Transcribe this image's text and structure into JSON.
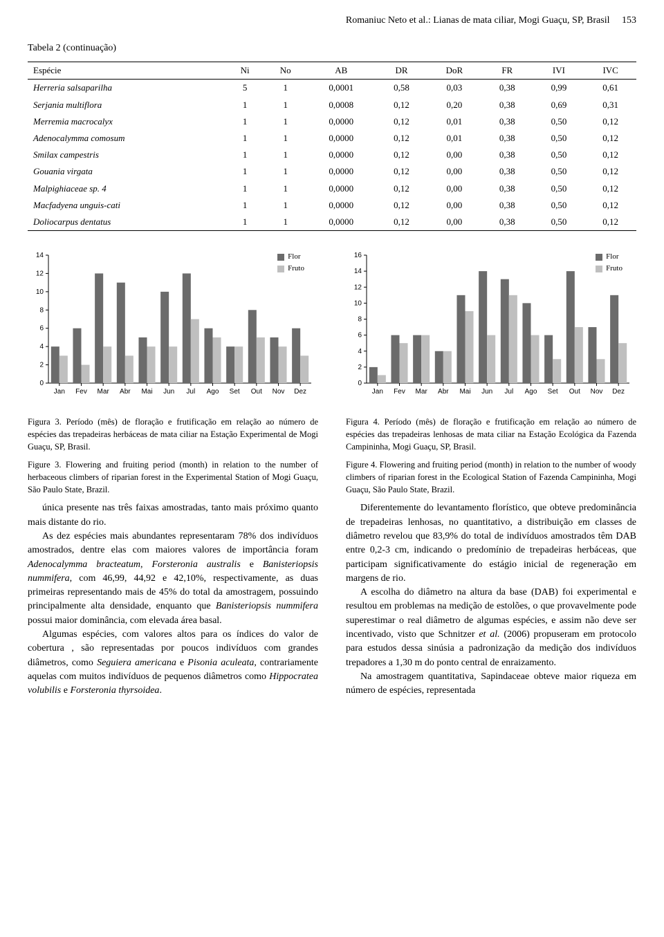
{
  "header": {
    "running_head": "Romaniuc Neto et al.: Lianas de mata ciliar, Mogi Guaçu, SP, Brasil",
    "page_number": "153"
  },
  "table": {
    "caption": "Tabela 2 (continuação)",
    "columns": [
      "Espécie",
      "Ni",
      "No",
      "AB",
      "DR",
      "DoR",
      "FR",
      "IVI",
      "IVC"
    ],
    "rows": [
      [
        "Herreria salsaparilha",
        "5",
        "1",
        "0,0001",
        "0,58",
        "0,03",
        "0,38",
        "0,99",
        "0,61"
      ],
      [
        "Serjania multiflora",
        "1",
        "1",
        "0,0008",
        "0,12",
        "0,20",
        "0,38",
        "0,69",
        "0,31"
      ],
      [
        "Merremia macrocalyx",
        "1",
        "1",
        "0,0000",
        "0,12",
        "0,01",
        "0,38",
        "0,50",
        "0,12"
      ],
      [
        "Adenocalymma comosum",
        "1",
        "1",
        "0,0000",
        "0,12",
        "0,01",
        "0,38",
        "0,50",
        "0,12"
      ],
      [
        "Smilax campestris",
        "1",
        "1",
        "0,0000",
        "0,12",
        "0,00",
        "0,38",
        "0,50",
        "0,12"
      ],
      [
        "Gouania virgata",
        "1",
        "1",
        "0,0000",
        "0,12",
        "0,00",
        "0,38",
        "0,50",
        "0,12"
      ],
      [
        "Malpighiaceae sp. 4",
        "1",
        "1",
        "0,0000",
        "0,12",
        "0,00",
        "0,38",
        "0,50",
        "0,12"
      ],
      [
        "Macfadyena unguis-cati",
        "1",
        "1",
        "0,0000",
        "0,12",
        "0,00",
        "0,38",
        "0,50",
        "0,12"
      ],
      [
        "Doliocarpus dentatus",
        "1",
        "1",
        "0,0000",
        "0,12",
        "0,00",
        "0,38",
        "0,50",
        "0,12"
      ]
    ]
  },
  "chart3": {
    "type": "bar",
    "categories": [
      "Jan",
      "Fev",
      "Mar",
      "Abr",
      "Mai",
      "Jun",
      "Jul",
      "Ago",
      "Set",
      "Out",
      "Nov",
      "Dez"
    ],
    "series": [
      {
        "name": "Flor",
        "color": "#6b6b6b",
        "values": [
          4,
          6,
          12,
          11,
          5,
          10,
          12,
          6,
          4,
          8,
          5,
          6
        ]
      },
      {
        "name": "Fruto",
        "color": "#bfbfbf",
        "values": [
          3,
          2,
          4,
          3,
          4,
          4,
          7,
          5,
          4,
          5,
          4,
          3
        ]
      }
    ],
    "ylim": [
      0,
      14
    ],
    "ytick_step": 2,
    "bar_width": 0.38,
    "background_color": "#ffffff",
    "axis_color": "#000000",
    "tick_font_size": 10
  },
  "chart4": {
    "type": "bar",
    "categories": [
      "Jan",
      "Fev",
      "Mar",
      "Abr",
      "Mai",
      "Jun",
      "Jul",
      "Ago",
      "Set",
      "Out",
      "Nov",
      "Dez"
    ],
    "series": [
      {
        "name": "Flor",
        "color": "#6b6b6b",
        "values": [
          2,
          6,
          6,
          4,
          11,
          14,
          13,
          10,
          6,
          14,
          7,
          11
        ]
      },
      {
        "name": "Fruto",
        "color": "#bfbfbf",
        "values": [
          1,
          5,
          6,
          4,
          9,
          6,
          11,
          6,
          3,
          7,
          3,
          5
        ]
      }
    ],
    "ylim": [
      0,
      16
    ],
    "ytick_step": 2,
    "bar_width": 0.38,
    "background_color": "#ffffff",
    "axis_color": "#000000",
    "tick_font_size": 10
  },
  "legend_labels": {
    "flor": "Flor",
    "fruto": "Fruto"
  },
  "captions": {
    "fig3_pt": "Figura 3. Período (mês) de floração e frutificação em relação ao número de espécies das trepadeiras herbáceas de mata ciliar na Estação Experimental de Mogi Guaçu, SP, Brasil.",
    "fig3_en": "Figure 3. Flowering and fruiting period (month) in relation to the number of herbaceous climbers of riparian forest in the Experimental Station of Mogi Guaçu, São Paulo State, Brazil.",
    "fig4_pt": "Figura 4. Período (mês) de floração e frutificação em relação ao número de espécies das trepadeiras lenhosas de mata ciliar na Estação Ecológica da Fazenda Campininha, Mogi Guaçu, SP, Brasil.",
    "fig4_en": "Figure 4. Flowering and fruiting period (month) in relation to the number of woody climbers of riparian forest in the Ecological Station of Fazenda Campininha, Mogi Guaçu, São Paulo State, Brazil."
  },
  "body": {
    "left": [
      "única presente nas três faixas amostradas, tanto mais próximo quanto mais distante do rio.",
      "As dez espécies mais abundantes representaram 78% dos indivíduos amostrados, dentre elas com maiores valores de importância foram <i>Adenocalymma bracteatum</i>, <i>Forsteronia australis</i> e <i>Banisteriopsis nummifera</i>, com 46,99, 44,92 e 42,10%, respectivamente, as duas primeiras representando mais de 45% do total da amostragem, possuindo principalmente alta densidade, enquanto que <i>Banisteriopsis nummifera</i> possui maior dominância, com elevada área basal.",
      "Algumas espécies, com valores altos para os índices do valor de cobertura , são representadas por poucos indivíduos com grandes diâmetros, como <i>Seguiera americana</i> e <i>Pisonia aculeata</i>, contrariamente aquelas com muitos indivíduos de pequenos diâmetros como <i>Hippocratea volubilis</i> e <i>Forsteronia thyrsoidea</i>."
    ],
    "right": [
      "Diferentemente do levantamento florístico, que obteve predominância de trepadeiras lenhosas, no quantitativo, a distribuição em classes de diâmetro revelou que 83,9% do total de indivíduos amostrados têm DAB entre 0,2-3 cm, indicando o predomínio de trepadeiras herbáceas, que participam significativamente do estágio inicial de regeneração em margens de rio.",
      "A escolha do diâmetro na altura da base (DAB) foi experimental e resultou em problemas na medição de estolões, o que provavelmente pode superestimar o real diâmetro de algumas espécies, e assim não deve ser incentivado, visto que Schnitzer <i>et al.</i> (2006) propuseram em protocolo para estudos dessa sinúsia a padronização da medição dos indivíduos trepadores a 1,30 m do ponto central de enraizamento.",
      "Na amostragem quantitativa, Sapindaceae obteve maior riqueza em número de espécies, representada"
    ]
  }
}
